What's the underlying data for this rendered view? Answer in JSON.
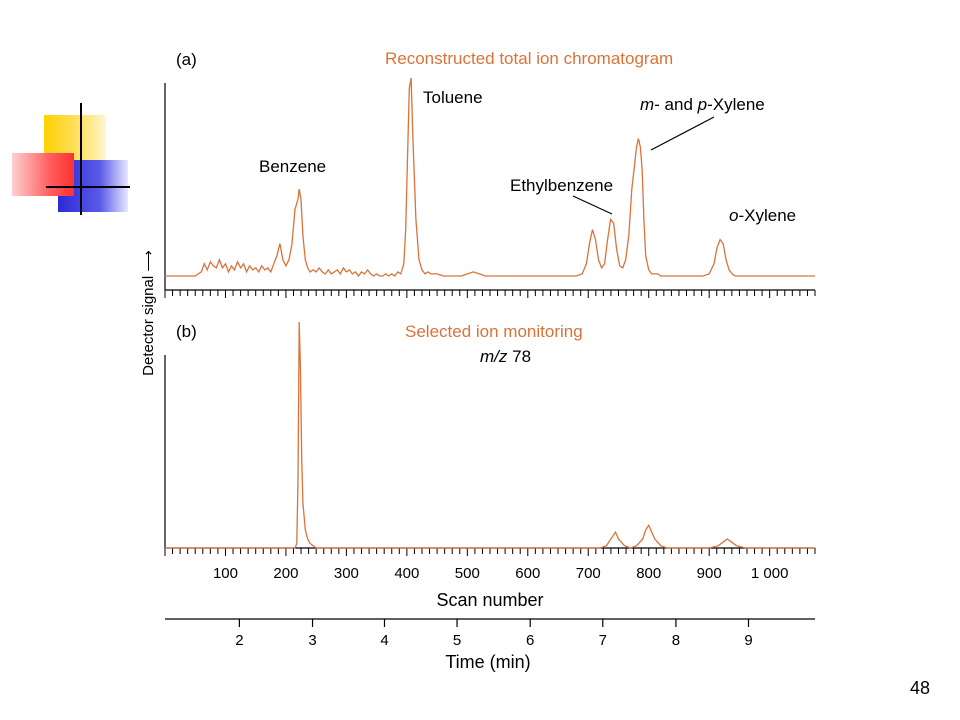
{
  "slide": {
    "page_number": "48",
    "accent_colors": [
      "#ffd700",
      "#ff4040",
      "#2a2ad8"
    ]
  },
  "chart_data": [
    {
      "type": "line",
      "panel_label": "(a)",
      "title": "Reconstructed total ion chromatogram",
      "ylabel": "Detector signal",
      "xlabel": "",
      "xlim": [
        0,
        1075
      ],
      "ylim": [
        0,
        100
      ],
      "line_color": "#d9733a",
      "title_color": "#d9733a",
      "series": [
        {
          "values_note": "",
          "x": [
            0,
            50,
            60,
            65,
            70,
            75,
            80,
            85,
            90,
            95,
            100,
            105,
            110,
            115,
            120,
            125,
            130,
            135,
            140,
            145,
            150,
            155,
            160,
            165,
            170,
            175,
            180,
            185,
            190,
            195,
            200,
            205,
            210,
            215,
            220,
            222,
            225,
            228,
            232,
            236,
            240,
            245,
            250,
            255,
            260,
            265,
            270,
            275,
            280,
            285,
            290,
            295,
            300,
            305,
            310,
            315,
            320,
            325,
            330,
            335,
            340,
            345,
            350,
            355,
            360,
            365,
            370,
            375,
            380,
            385,
            390,
            395,
            398,
            401,
            404,
            407,
            410,
            415,
            420,
            425,
            430,
            435,
            440,
            450,
            460,
            470,
            480,
            490,
            500,
            510,
            520,
            530,
            540,
            550,
            560,
            570,
            580,
            590,
            600,
            610,
            620,
            630,
            640,
            650,
            660,
            670,
            680,
            690,
            697,
            702,
            707,
            712,
            717,
            722,
            727,
            732,
            737,
            742,
            747,
            752,
            757,
            762,
            767,
            772,
            777,
            780,
            783,
            786,
            789,
            792,
            795,
            800,
            805,
            810,
            815,
            820,
            830,
            840,
            850,
            860,
            870,
            880,
            890,
            900,
            908,
            913,
            918,
            923,
            928,
            933,
            938,
            943,
            948,
            955,
            965,
            975,
            985,
            995,
            1005,
            1015,
            1025,
            1035,
            1045,
            1055,
            1065,
            1075
          ],
          "values": [
            2,
            2,
            4,
            8,
            5,
            9,
            7,
            6,
            10,
            6,
            8,
            4,
            7,
            5,
            9,
            6,
            8,
            4,
            7,
            5,
            6,
            4,
            7,
            5,
            6,
            4,
            8,
            12,
            18,
            10,
            7,
            10,
            18,
            35,
            40,
            45,
            40,
            22,
            10,
            6,
            4,
            5,
            4,
            6,
            4,
            3,
            5,
            3,
            4,
            5,
            3,
            6,
            4,
            5,
            3,
            4,
            2,
            4,
            3,
            5,
            3,
            2,
            3,
            2,
            2,
            3,
            2,
            3,
            2,
            4,
            3,
            8,
            25,
            60,
            95,
            100,
            70,
            30,
            10,
            5,
            3,
            4,
            3,
            3,
            2,
            2,
            2,
            2,
            3,
            4,
            3,
            2,
            2,
            2,
            2,
            2,
            2,
            2,
            2,
            2,
            2,
            2,
            2,
            2,
            2,
            2,
            2,
            3,
            8,
            18,
            25,
            20,
            10,
            6,
            8,
            20,
            30,
            28,
            15,
            7,
            6,
            10,
            22,
            45,
            58,
            66,
            70,
            66,
            55,
            30,
            12,
            5,
            3,
            3,
            3,
            2,
            2,
            2,
            2,
            2,
            2,
            2,
            2,
            3,
            8,
            16,
            20,
            18,
            10,
            5,
            3,
            2,
            2,
            2,
            2,
            2,
            2,
            2,
            2,
            2,
            2,
            2,
            2,
            2,
            2,
            2
          ]
        }
      ],
      "annotations": [
        {
          "text": "Benzene",
          "x": 222
        },
        {
          "text": "Toluene",
          "x": 407
        },
        {
          "text": "Ethylbenzene",
          "x": 740
        },
        {
          "text_parts": [
            "m",
            "- and ",
            "p",
            "-Xylene"
          ],
          "x": 786
        },
        {
          "text_parts": [
            "o",
            "-Xylene"
          ],
          "x": 928
        }
      ]
    },
    {
      "type": "line",
      "panel_label": "(b)",
      "title": "Selected ion monitoring",
      "subtitle_parts": [
        "m/z",
        " 78"
      ],
      "ylabel": "",
      "xlabel": "Scan number",
      "xlim": [
        0,
        1075
      ],
      "ylim": [
        0,
        100
      ],
      "x_ticks": [
        100,
        200,
        300,
        400,
        500,
        600,
        700,
        800,
        900,
        1000
      ],
      "x_tick_labels": [
        "100",
        "200",
        "300",
        "400",
        "500",
        "600",
        "700",
        "800",
        "900",
        "1 000"
      ],
      "secondary_axis": {
        "xlabel": "Time (min)",
        "ticks": [
          2,
          3,
          4,
          5,
          6,
          7,
          8,
          9
        ],
        "tick_scan_positions": [
          123,
          244,
          363,
          483,
          604,
          724,
          845,
          965
        ]
      },
      "series": [
        {
          "x": [
            0,
            210,
            215,
            218,
            220,
            222,
            224,
            226,
            228,
            232,
            236,
            240,
            245,
            250,
            300,
            400,
            500,
            600,
            700,
            720,
            730,
            740,
            745,
            750,
            760,
            770,
            780,
            790,
            795,
            800,
            810,
            820,
            830,
            900,
            915,
            925,
            930,
            935,
            945,
            960,
            1075
          ],
          "values": [
            0,
            0,
            0,
            2,
            30,
            100,
            80,
            40,
            20,
            8,
            4,
            2,
            1,
            0,
            0,
            0,
            0,
            0,
            0,
            0,
            1,
            5,
            7,
            4,
            1,
            0,
            1,
            4,
            8,
            10,
            4,
            1,
            0,
            0,
            1,
            3,
            4,
            3,
            1,
            0,
            0
          ]
        }
      ]
    }
  ]
}
